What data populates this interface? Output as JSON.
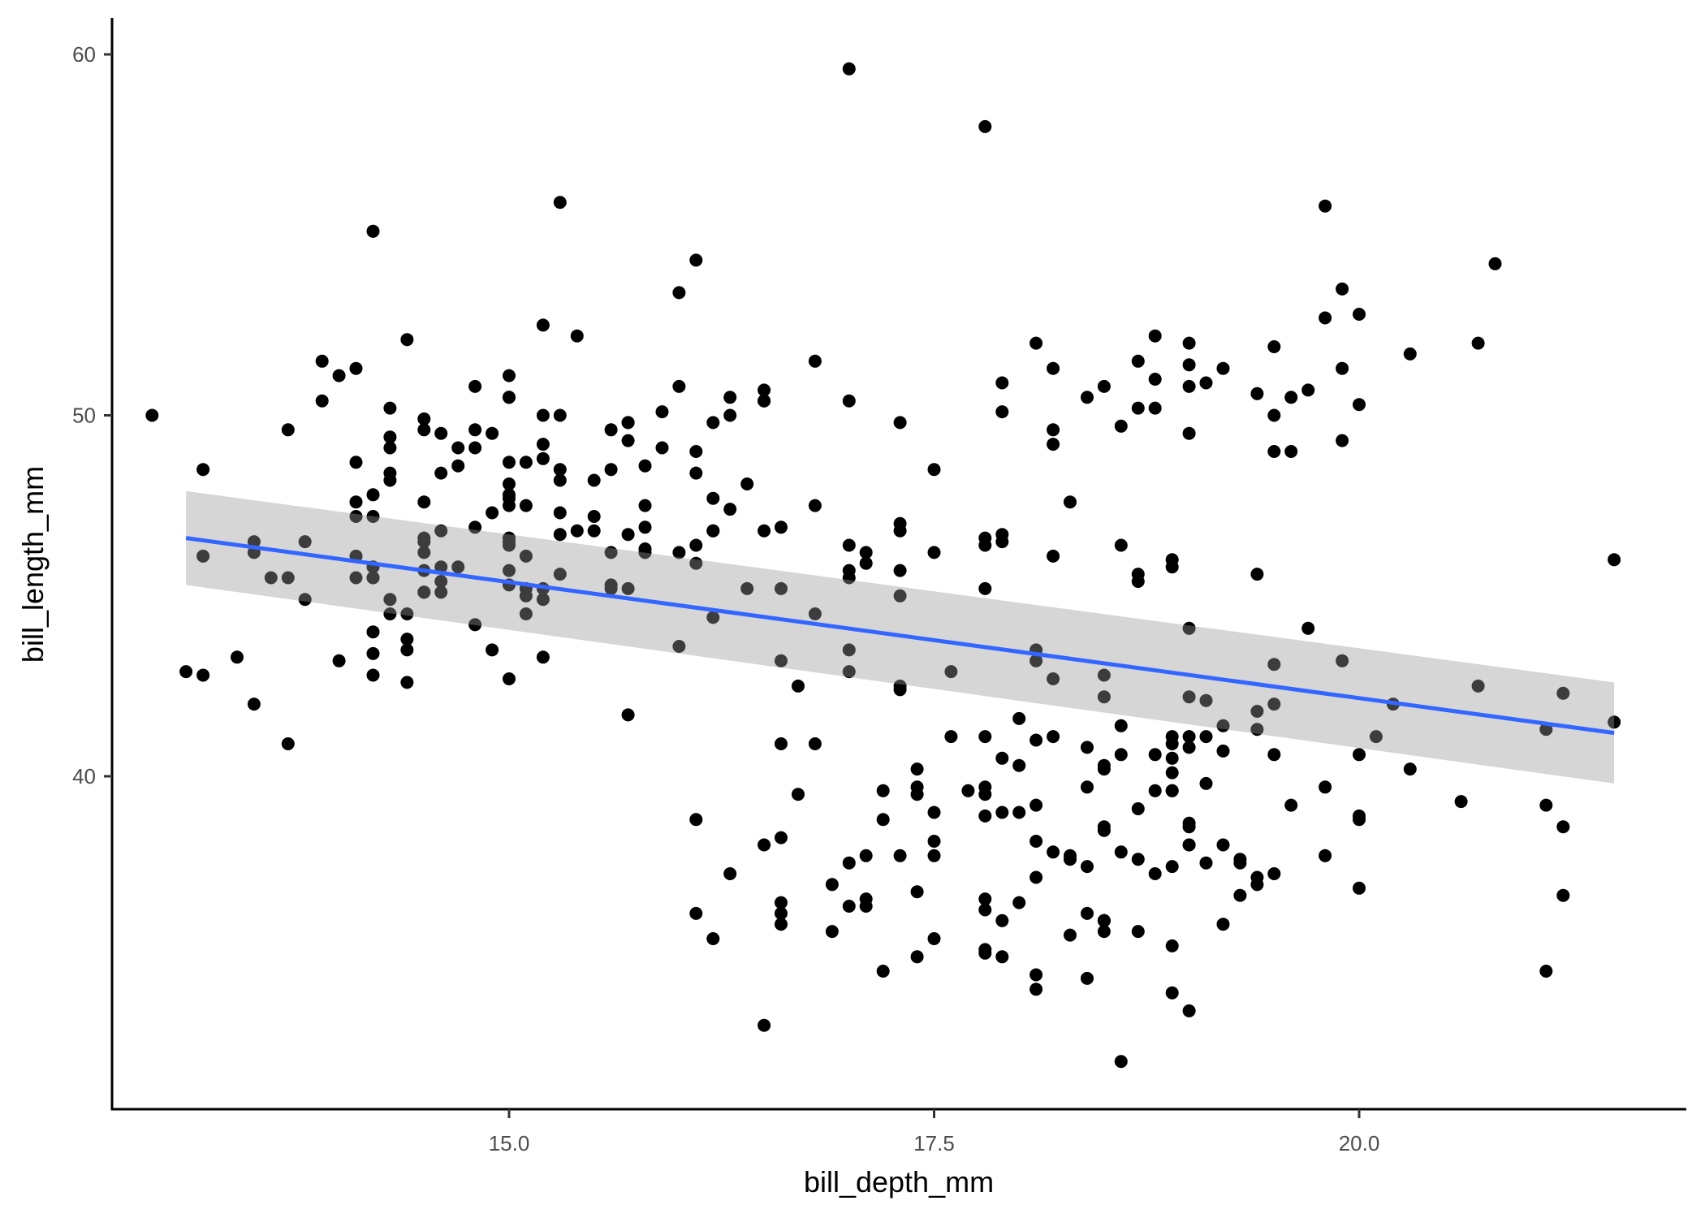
{
  "chart_data": {
    "type": "scatter",
    "title": "",
    "xlabel": "bill_depth_mm",
    "ylabel": "bill_length_mm",
    "xlim": [
      12.7,
      21.9
    ],
    "ylim": [
      30.9,
      60.5
    ],
    "xticks": [
      15.0,
      17.5,
      20.0
    ],
    "xtick_labels": [
      "15.0",
      "17.5",
      "20.0"
    ],
    "yticks": [
      40,
      50,
      60
    ],
    "ytick_labels": [
      "40",
      "50",
      "60"
    ],
    "grid": false,
    "legend": null,
    "point_color": "#000000",
    "smooth": {
      "method": "lm",
      "color": "#3366FF",
      "band_color": "#999999",
      "band_alpha": 0.4,
      "x": [
        13.1,
        21.5
      ],
      "fit": [
        46.6,
        41.2
      ],
      "lower": [
        45.3,
        39.8
      ],
      "upper": [
        47.9,
        42.6
      ]
    },
    "points": [
      [
        18.7,
        39.1
      ],
      [
        17.4,
        39.5
      ],
      [
        18.0,
        40.3
      ],
      [
        19.3,
        36.7
      ],
      [
        20.6,
        39.3
      ],
      [
        17.8,
        38.9
      ],
      [
        19.6,
        39.2
      ],
      [
        18.1,
        34.1
      ],
      [
        20.2,
        42.0
      ],
      [
        17.1,
        37.8
      ],
      [
        17.3,
        37.8
      ],
      [
        17.6,
        41.1
      ],
      [
        21.2,
        38.6
      ],
      [
        21.1,
        34.6
      ],
      [
        17.8,
        36.6
      ],
      [
        19.0,
        38.7
      ],
      [
        20.7,
        42.5
      ],
      [
        18.4,
        34.4
      ],
      [
        21.5,
        46.0
      ],
      [
        18.3,
        37.8
      ],
      [
        18.7,
        37.7
      ],
      [
        19.2,
        35.9
      ],
      [
        18.1,
        38.2
      ],
      [
        17.2,
        38.8
      ],
      [
        18.9,
        35.3
      ],
      [
        18.6,
        40.6
      ],
      [
        17.9,
        40.5
      ],
      [
        18.6,
        37.9
      ],
      [
        18.9,
        40.5
      ],
      [
        16.7,
        39.5
      ],
      [
        18.1,
        37.2
      ],
      [
        17.8,
        39.5
      ],
      [
        18.9,
        40.9
      ],
      [
        17.0,
        36.4
      ],
      [
        21.1,
        39.2
      ],
      [
        20.0,
        38.8
      ],
      [
        18.5,
        42.2
      ],
      [
        19.3,
        37.6
      ],
      [
        19.1,
        39.8
      ],
      [
        18.0,
        36.5
      ],
      [
        18.4,
        40.8
      ],
      [
        18.5,
        36.0
      ],
      [
        19.7,
        44.1
      ],
      [
        16.9,
        37.0
      ],
      [
        18.8,
        39.6
      ],
      [
        19.0,
        41.1
      ],
      [
        18.9,
        37.5
      ],
      [
        17.9,
        36.0
      ],
      [
        21.2,
        42.3
      ],
      [
        17.7,
        39.6
      ],
      [
        18.9,
        40.1
      ],
      [
        17.9,
        35.0
      ],
      [
        19.5,
        42.0
      ],
      [
        18.1,
        34.5
      ],
      [
        18.6,
        41.4
      ],
      [
        17.5,
        39.0
      ],
      [
        18.8,
        40.6
      ],
      [
        16.6,
        36.5
      ],
      [
        19.1,
        37.6
      ],
      [
        16.9,
        35.7
      ],
      [
        21.1,
        41.3
      ],
      [
        17.0,
        37.6
      ],
      [
        18.2,
        41.1
      ],
      [
        17.1,
        36.4
      ],
      [
        18.0,
        41.6
      ],
      [
        16.2,
        35.5
      ],
      [
        19.1,
        41.1
      ],
      [
        16.6,
        35.9
      ],
      [
        19.4,
        41.8
      ],
      [
        19.0,
        33.5
      ],
      [
        18.4,
        39.7
      ],
      [
        17.2,
        39.6
      ],
      [
        18.9,
        45.8
      ],
      [
        17.5,
        35.5
      ],
      [
        18.5,
        42.8
      ],
      [
        16.8,
        40.9
      ],
      [
        19.4,
        37.2
      ],
      [
        16.1,
        36.2
      ],
      [
        19.1,
        42.1
      ],
      [
        17.2,
        34.6
      ],
      [
        17.6,
        42.9
      ],
      [
        21.2,
        36.7
      ],
      [
        17.8,
        35.1
      ],
      [
        19.5,
        37.3
      ],
      [
        19.4,
        41.3
      ],
      [
        17.8,
        36.3
      ],
      [
        20.0,
        36.9
      ],
      [
        16.6,
        38.3
      ],
      [
        20.0,
        38.9
      ],
      [
        18.7,
        35.7
      ],
      [
        18.9,
        41.1
      ],
      [
        18.9,
        34.0
      ],
      [
        18.9,
        39.6
      ],
      [
        16.6,
        36.2
      ],
      [
        19.0,
        40.8
      ],
      [
        19.0,
        38.1
      ],
      [
        18.5,
        40.3
      ],
      [
        16.5,
        33.1
      ],
      [
        19.9,
        43.2
      ],
      [
        17.4,
        35.0
      ],
      [
        18.1,
        41.0
      ],
      [
        18.3,
        37.7
      ],
      [
        19.8,
        37.8
      ],
      [
        18.2,
        37.9
      ],
      [
        19.8,
        39.7
      ],
      [
        19.0,
        38.6
      ],
      [
        17.5,
        38.2
      ],
      [
        16.5,
        38.1
      ],
      [
        18.1,
        43.2
      ],
      [
        19.2,
        38.1
      ],
      [
        18.7,
        45.6
      ],
      [
        17.4,
        39.7
      ],
      [
        19.0,
        42.2
      ],
      [
        18.9,
        39.6
      ],
      [
        18.2,
        42.7
      ],
      [
        18.5,
        38.6
      ],
      [
        16.3,
        37.3
      ],
      [
        18.5,
        35.7
      ],
      [
        20.1,
        41.1
      ],
      [
        18.4,
        36.2
      ],
      [
        19.3,
        37.7
      ],
      [
        18.5,
        40.2
      ],
      [
        19.2,
        41.4
      ],
      [
        17.8,
        35.2
      ],
      [
        20.0,
        40.6
      ],
      [
        16.1,
        38.8
      ],
      [
        21.5,
        41.5
      ],
      [
        17.9,
        39.0
      ],
      [
        19.0,
        44.1
      ],
      [
        18.5,
        38.5
      ],
      [
        19.5,
        43.1
      ],
      [
        17.4,
        36.8
      ],
      [
        18.4,
        37.5
      ],
      [
        19.0,
        38.1
      ],
      [
        17.8,
        41.1
      ],
      [
        18.3,
        35.6
      ],
      [
        17.4,
        40.2
      ],
      [
        19.4,
        37.0
      ],
      [
        17.8,
        39.7
      ],
      [
        20.3,
        40.2
      ],
      [
        19.5,
        40.6
      ],
      [
        18.6,
        32.1
      ],
      [
        19.2,
        40.7
      ],
      [
        18.8,
        37.3
      ],
      [
        18.0,
        39.0
      ],
      [
        18.1,
        39.2
      ],
      [
        17.1,
        36.6
      ],
      [
        18.5,
        36.0
      ],
      [
        17.5,
        37.8
      ],
      [
        18.5,
        36.0
      ],
      [
        13.2,
        46.1
      ],
      [
        16.3,
        50.0
      ],
      [
        14.1,
        48.7
      ],
      [
        15.2,
        50.0
      ],
      [
        14.5,
        47.6
      ],
      [
        13.5,
        46.5
      ],
      [
        14.6,
        45.4
      ],
      [
        15.3,
        46.7
      ],
      [
        13.4,
        43.3
      ],
      [
        15.4,
        46.8
      ],
      [
        13.7,
        40.9
      ],
      [
        16.1,
        49.0
      ],
      [
        13.7,
        45.5
      ],
      [
        14.6,
        48.4
      ],
      [
        14.6,
        45.8
      ],
      [
        15.7,
        49.3
      ],
      [
        13.5,
        42.0
      ],
      [
        15.2,
        49.2
      ],
      [
        14.5,
        46.2
      ],
      [
        15.1,
        48.7
      ],
      [
        14.3,
        50.2
      ],
      [
        14.5,
        45.1
      ],
      [
        14.5,
        46.5
      ],
      [
        15.8,
        46.3
      ],
      [
        13.1,
        42.9
      ],
      [
        15.1,
        46.1
      ],
      [
        14.3,
        44.5
      ],
      [
        15.0,
        47.8
      ],
      [
        14.3,
        48.2
      ],
      [
        15.3,
        50.0
      ],
      [
        15.3,
        47.3
      ],
      [
        14.2,
        42.8
      ],
      [
        14.5,
        45.1
      ],
      [
        17.0,
        59.6
      ],
      [
        14.8,
        49.1
      ],
      [
        16.1,
        48.4
      ],
      [
        14.4,
        42.6
      ],
      [
        16.2,
        44.4
      ],
      [
        14.2,
        44.0
      ],
      [
        15.0,
        48.7
      ],
      [
        15.0,
        42.7
      ],
      [
        15.6,
        49.6
      ],
      [
        15.6,
        45.3
      ],
      [
        14.8,
        49.6
      ],
      [
        15.0,
        50.5
      ],
      [
        16.0,
        43.6
      ],
      [
        14.2,
        45.5
      ],
      [
        16.3,
        50.5
      ],
      [
        13.8,
        44.9
      ],
      [
        16.4,
        45.2
      ],
      [
        14.5,
        46.6
      ],
      [
        15.6,
        48.5
      ],
      [
        14.6,
        45.1
      ],
      [
        15.9,
        50.1
      ],
      [
        13.8,
        46.5
      ],
      [
        17.3,
        45.0
      ],
      [
        14.4,
        43.8
      ],
      [
        14.2,
        45.5
      ],
      [
        14.0,
        43.2
      ],
      [
        17.0,
        50.4
      ],
      [
        15.0,
        45.3
      ],
      [
        17.1,
        46.2
      ],
      [
        14.5,
        45.7
      ],
      [
        16.1,
        54.3
      ],
      [
        14.7,
        45.8
      ],
      [
        15.7,
        49.8
      ],
      [
        15.8,
        46.2
      ],
      [
        14.6,
        49.5
      ],
      [
        14.4,
        43.5
      ],
      [
        16.5,
        50.7
      ],
      [
        15.0,
        47.7
      ],
      [
        17.0,
        46.4
      ],
      [
        15.5,
        48.2
      ],
      [
        15.0,
        46.5
      ],
      [
        16.1,
        46.4
      ],
      [
        14.7,
        48.6
      ],
      [
        15.8,
        47.5
      ],
      [
        14.0,
        51.1
      ],
      [
        15.1,
        45.2
      ],
      [
        15.2,
        45.2
      ],
      [
        15.9,
        49.1
      ],
      [
        15.2,
        52.5
      ],
      [
        16.3,
        47.4
      ],
      [
        12.9,
        50.0
      ],
      [
        14.3,
        44.9
      ],
      [
        14.8,
        50.8
      ],
      [
        14.2,
        43.4
      ],
      [
        14.1,
        51.3
      ],
      [
        15.1,
        47.5
      ],
      [
        14.4,
        52.1
      ],
      [
        15.0,
        47.5
      ],
      [
        15.4,
        52.2
      ],
      [
        13.6,
        45.5
      ],
      [
        14.9,
        49.5
      ],
      [
        15.1,
        44.5
      ],
      [
        16.0,
        50.8
      ],
      [
        14.3,
        49.4
      ],
      [
        15.8,
        46.9
      ],
      [
        14.3,
        48.4
      ],
      [
        15.0,
        51.1
      ],
      [
        15.3,
        48.5
      ],
      [
        15.3,
        55.9
      ],
      [
        14.2,
        47.2
      ],
      [
        14.7,
        49.1
      ],
      [
        14.9,
        47.3
      ],
      [
        15.5,
        46.8
      ],
      [
        15.7,
        41.7
      ],
      [
        16.0,
        53.4
      ],
      [
        15.2,
        43.3
      ],
      [
        15.0,
        48.1
      ],
      [
        15.0,
        50.5
      ],
      [
        15.7,
        49.8
      ],
      [
        14.9,
        43.5
      ],
      [
        16.8,
        51.5
      ],
      [
        16.0,
        46.2
      ],
      [
        14.2,
        55.1
      ],
      [
        16.8,
        44.5
      ],
      [
        15.2,
        48.8
      ],
      [
        15.5,
        47.2
      ],
      [
        16.2,
        46.8
      ],
      [
        13.9,
        50.4
      ],
      [
        15.6,
        45.2
      ],
      [
        14.5,
        49.9
      ],
      [
        14.8,
        46.9
      ],
      [
        15.6,
        46.2
      ],
      [
        16.2,
        46.8
      ],
      [
        14.1,
        45.5
      ],
      [
        16.5,
        50.4
      ],
      [
        13.9,
        51.5
      ],
      [
        14.1,
        46.1
      ],
      [
        13.2,
        42.8
      ],
      [
        15.3,
        45.6
      ],
      [
        14.5,
        49.6
      ],
      [
        15.0,
        46.6
      ],
      [
        17.0,
        42.9
      ],
      [
        14.2,
        45.8
      ],
      [
        13.5,
        46.2
      ],
      [
        14.8,
        44.2
      ],
      [
        14.1,
        47.6
      ],
      [
        16.2,
        49.8
      ],
      [
        15.1,
        45.0
      ],
      [
        13.2,
        48.5
      ],
      [
        15.7,
        46.7
      ],
      [
        14.4,
        44.5
      ],
      [
        15.0,
        46.4
      ],
      [
        16.2,
        47.7
      ],
      [
        15.3,
        48.2
      ],
      [
        14.3,
        49.1
      ],
      [
        14.2,
        47.8
      ],
      [
        15.8,
        48.6
      ],
      [
        16.5,
        50.4
      ],
      [
        15.7,
        45.2
      ],
      [
        17.3,
        46.8
      ],
      [
        13.7,
        49.6
      ],
      [
        16.1,
        45.9
      ],
      [
        15.0,
        45.7
      ],
      [
        17.0,
        43.5
      ],
      [
        15.2,
        44.9
      ],
      [
        14.1,
        47.2
      ],
      [
        14.6,
        46.8
      ],
      [
        17.9,
        46.5
      ],
      [
        19.5,
        50.0
      ],
      [
        19.2,
        51.3
      ],
      [
        18.7,
        45.4
      ],
      [
        19.8,
        52.7
      ],
      [
        17.8,
        45.2
      ],
      [
        18.2,
        46.1
      ],
      [
        18.2,
        51.3
      ],
      [
        18.9,
        46.0
      ],
      [
        19.9,
        51.3
      ],
      [
        17.8,
        46.6
      ],
      [
        20.3,
        51.7
      ],
      [
        17.3,
        47.0
      ],
      [
        18.1,
        52.0
      ],
      [
        17.1,
        45.9
      ],
      [
        19.6,
        50.5
      ],
      [
        20.0,
        50.3
      ],
      [
        17.8,
        58.0
      ],
      [
        18.6,
        46.4
      ],
      [
        18.2,
        49.2
      ],
      [
        17.3,
        42.4
      ],
      [
        17.5,
        48.5
      ],
      [
        16.6,
        43.2
      ],
      [
        19.4,
        50.6
      ],
      [
        17.9,
        46.7
      ],
      [
        19.0,
        52.0
      ],
      [
        18.4,
        50.5
      ],
      [
        19.0,
        49.5
      ],
      [
        17.8,
        46.4
      ],
      [
        20.0,
        52.8
      ],
      [
        16.6,
        40.9
      ],
      [
        20.8,
        54.2
      ],
      [
        16.7,
        42.5
      ],
      [
        18.8,
        51.0
      ],
      [
        18.6,
        49.7
      ],
      [
        16.8,
        47.5
      ],
      [
        18.3,
        47.6
      ],
      [
        20.7,
        52.0
      ],
      [
        16.6,
        46.9
      ],
      [
        19.9,
        53.5
      ],
      [
        19.5,
        49.0
      ],
      [
        17.5,
        46.2
      ],
      [
        19.1,
        50.9
      ],
      [
        17.0,
        45.5
      ],
      [
        17.9,
        50.9
      ],
      [
        18.5,
        50.8
      ],
      [
        17.9,
        50.1
      ],
      [
        19.6,
        49.0
      ],
      [
        18.7,
        51.5
      ],
      [
        17.3,
        49.8
      ],
      [
        16.4,
        48.1
      ],
      [
        19.0,
        51.4
      ],
      [
        17.3,
        45.7
      ],
      [
        19.7,
        50.7
      ],
      [
        17.3,
        42.5
      ],
      [
        18.8,
        52.2
      ],
      [
        16.6,
        45.2
      ],
      [
        19.9,
        49.3
      ],
      [
        18.8,
        50.2
      ],
      [
        19.4,
        45.6
      ],
      [
        19.5,
        51.9
      ],
      [
        16.5,
        46.8
      ],
      [
        17.0,
        45.7
      ],
      [
        19.8,
        55.8
      ],
      [
        18.1,
        43.5
      ],
      [
        18.2,
        49.6
      ],
      [
        19.0,
        50.8
      ],
      [
        18.7,
        50.2
      ]
    ]
  }
}
